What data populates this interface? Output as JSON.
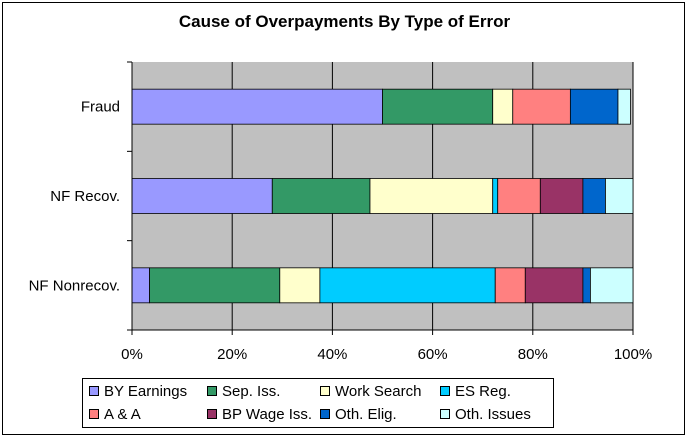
{
  "chart_data": {
    "type": "bar",
    "orientation": "horizontal",
    "stacked": "percent",
    "title": "Cause of Overpayments By Type of Error",
    "categories": [
      "Fraud",
      "NF Recov.",
      "NF Nonrecov."
    ],
    "series": [
      {
        "name": "BY Earnings",
        "color": "#9999ff",
        "values": [
          50,
          28,
          3.5
        ]
      },
      {
        "name": "Sep. Iss.",
        "color": "#339966",
        "values": [
          22,
          19.5,
          26
        ]
      },
      {
        "name": "Work Search",
        "color": "#ffffcc",
        "values": [
          4,
          24.5,
          8
        ]
      },
      {
        "name": "ES Reg.",
        "color": "#00ccff",
        "values": [
          0,
          1,
          35
        ]
      },
      {
        "name": "A & A",
        "color": "#ff8080",
        "values": [
          11.5,
          8.5,
          6
        ]
      },
      {
        "name": "BP Wage Iss.",
        "color": "#993366",
        "values": [
          0,
          8.5,
          11.5
        ]
      },
      {
        "name": "Oth. Elig.",
        "color": "#0066cc",
        "values": [
          9.5,
          4.5,
          1.5
        ]
      },
      {
        "name": "Oth. Issues",
        "color": "#ccffff",
        "values": [
          2.5,
          5.5,
          8.5
        ]
      }
    ],
    "xlim": [
      0,
      100
    ],
    "x_ticks": [
      "0%",
      "20%",
      "40%",
      "60%",
      "80%",
      "100%"
    ],
    "grid": true,
    "plot_background": "#c0c0c0",
    "legend_position": "bottom"
  }
}
